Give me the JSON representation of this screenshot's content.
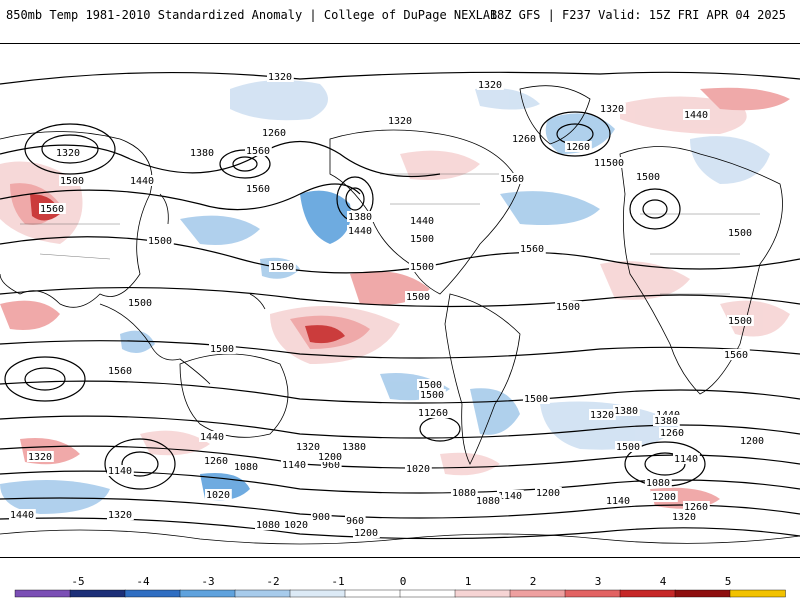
{
  "header": {
    "left_title": "850mb Temp 1981-2010 Standardized Anomaly | College of DuPage NEXLAB",
    "right_title": "18Z GFS | F237 Valid: 15Z FRI APR 04 2025"
  },
  "map": {
    "projection": "global cylindrical",
    "contour_field": "850mb geopotential height",
    "contour_color": "#000000",
    "coastline_color": "#000000",
    "land_color": "#ffffff",
    "contour_labels": [
      "1320",
      "1320",
      "1260",
      "1440",
      "1320",
      "1260",
      "1500",
      "1320",
      "1320",
      "1380",
      "1260",
      "1560",
      "1380",
      "1500",
      "1440",
      "1560",
      "1500",
      "1440",
      "1500",
      "1560",
      "1560",
      "1500",
      "1380",
      "1440",
      "1500",
      "1500",
      "1500",
      "1560",
      "1500",
      "1500",
      "1500",
      "1500",
      "1560",
      "1500",
      "1500",
      "1560",
      "1500",
      "1500",
      "1500",
      "1440",
      "1380",
      "1260",
      "1440",
      "1320",
      "1380",
      "1260",
      "1200",
      "1500",
      "1320",
      "1440",
      "1260",
      "1140",
      "1320",
      "1380",
      "1200",
      "1140",
      "1080",
      "1140",
      "960",
      "1200",
      "1020",
      "1080",
      "1200",
      "1140",
      "1080",
      "1200",
      "1020",
      "1440",
      "1320",
      "1080",
      "1020",
      "900",
      "960",
      "1200",
      "1260",
      "1320",
      "1140",
      "1080"
    ]
  },
  "colorbar": {
    "ticks": [
      "-5",
      "-4",
      "-3",
      "-2",
      "-1",
      "0",
      "1",
      "2",
      "3",
      "4",
      "5"
    ],
    "colors": [
      "#7b4fb5",
      "#1c2f78",
      "#2f6ec2",
      "#5fa2dd",
      "#a7cbeb",
      "#dceaf6",
      "#ffffff",
      "#ffffff",
      "#f6d4d4",
      "#eea0a0",
      "#e26363",
      "#c62828",
      "#8e0f0f",
      "#f2c200"
    ]
  }
}
